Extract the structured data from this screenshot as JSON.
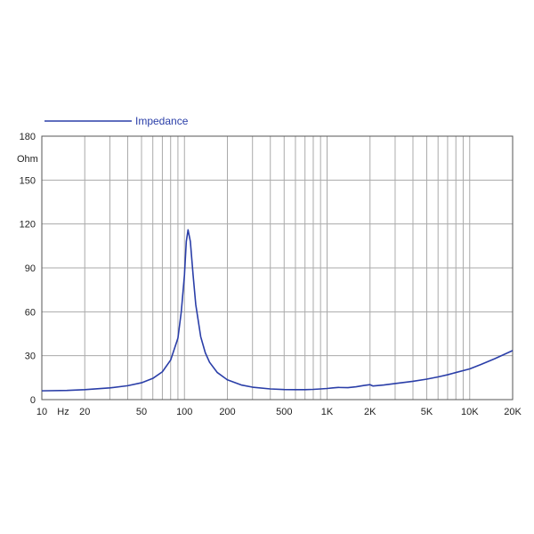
{
  "chart_data": {
    "type": "line",
    "title": "",
    "xlabel": "Hz",
    "ylabel": "Ohm",
    "x_scale": "log",
    "xlim": [
      10,
      20000
    ],
    "ylim": [
      0,
      180
    ],
    "grid": true,
    "legend_position": "top-left",
    "x_ticks": [
      {
        "value": 10,
        "label": "10"
      },
      {
        "value": 20,
        "label": "20"
      },
      {
        "value": 50,
        "label": "50"
      },
      {
        "value": 100,
        "label": "100"
      },
      {
        "value": 200,
        "label": "200"
      },
      {
        "value": 500,
        "label": "500"
      },
      {
        "value": 1000,
        "label": "1K"
      },
      {
        "value": 2000,
        "label": "2K"
      },
      {
        "value": 5000,
        "label": "5K"
      },
      {
        "value": 10000,
        "label": "10K"
      },
      {
        "value": 20000,
        "label": "20K"
      }
    ],
    "y_ticks": [
      {
        "value": 0,
        "label": "0"
      },
      {
        "value": 30,
        "label": "30"
      },
      {
        "value": 60,
        "label": "60"
      },
      {
        "value": 90,
        "label": "90"
      },
      {
        "value": 120,
        "label": "120"
      },
      {
        "value": 150,
        "label": "150"
      },
      {
        "value": 180,
        "label": "180"
      }
    ],
    "series": [
      {
        "name": "Impedance",
        "color": "#2a3ea8",
        "x": [
          10,
          15,
          20,
          30,
          40,
          50,
          60,
          70,
          80,
          90,
          95,
          100,
          103,
          106,
          110,
          115,
          120,
          130,
          140,
          150,
          170,
          200,
          250,
          300,
          400,
          500,
          600,
          700,
          800,
          900,
          1000,
          1100,
          1200,
          1400,
          1600,
          1800,
          2000,
          2100,
          2500,
          3000,
          4000,
          5000,
          6000,
          7000,
          8000,
          10000,
          12000,
          15000,
          20000
        ],
        "y": [
          6.0,
          6.3,
          6.8,
          8.0,
          9.5,
          11.5,
          14.5,
          19.0,
          27.0,
          42.0,
          60.0,
          85.0,
          108.0,
          116.0,
          108.0,
          85.0,
          65.0,
          43.0,
          32.0,
          25.5,
          18.5,
          13.5,
          10.0,
          8.5,
          7.3,
          6.9,
          6.8,
          6.8,
          7.0,
          7.3,
          7.6,
          8.0,
          8.3,
          8.2,
          8.8,
          9.6,
          10.2,
          9.3,
          10.0,
          11.0,
          12.5,
          14.0,
          15.5,
          17.0,
          18.5,
          21.0,
          24.0,
          28.0,
          33.5
        ]
      }
    ]
  }
}
